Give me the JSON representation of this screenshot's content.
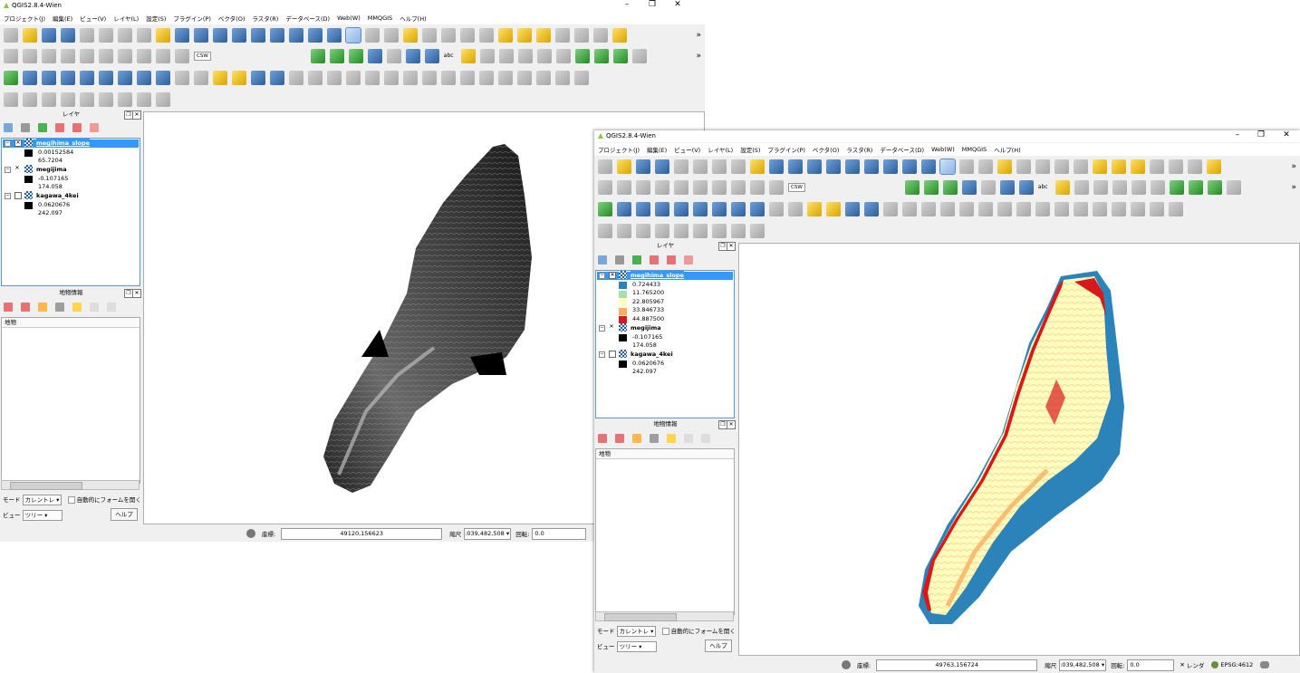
{
  "app_title": "QGIS2.8.4-Wien",
  "menu": [
    "プロジェクト(J)",
    "編集(E)",
    "ビュー(V)",
    "レイヤ(L)",
    "設定(S)",
    "プラグイン(P)",
    "ベクタ(O)",
    "ラスタ(R)",
    "データベース(D)",
    "Web(W)",
    "MMQGIS",
    "ヘルプ(H)"
  ],
  "toolbar": {
    "csw_label": "CSW",
    "abc_label": "abc"
  },
  "layers_panel": {
    "title": "レイヤ"
  },
  "window1": {
    "layers": [
      {
        "name": "megihima_slope",
        "legend": [
          "0.00152584",
          "65.7204"
        ]
      },
      {
        "name": "megijima",
        "legend": [
          "-0.107165",
          "174.058"
        ]
      },
      {
        "name": "kagawa_4kei",
        "legend": [
          "0.0620676",
          "242.097"
        ]
      }
    ],
    "coordinate": "49120,156623",
    "scale": ":039,482,508",
    "rotation": "0.0"
  },
  "window2": {
    "layers": [
      {
        "name": "megihima_slope",
        "legend": [
          "0.724433",
          "11.765200",
          "22.805967",
          "33.846733",
          "44.887500"
        ]
      },
      {
        "name": "megijima",
        "legend": [
          "-0.107165",
          "174.058"
        ]
      },
      {
        "name": "kagawa_4kei",
        "legend": [
          "0.0620676",
          "242.097"
        ]
      }
    ],
    "slope_colors": [
      "#2b83ba",
      "#abdda4",
      "#ffffbf",
      "#fdae61",
      "#d7191c"
    ],
    "coordinate": "49763,156724",
    "scale": ":039,482,508",
    "rotation": "0.0",
    "render_label": "レンダ",
    "crs": "EPSG:4612"
  },
  "feature_panel": {
    "title": "地物情報",
    "column": "地物",
    "mode_label": "モード",
    "mode_value": "カレントレ",
    "auto_open_label": "自動的にフォームを開く",
    "view_label": "ビュー",
    "view_value": "ツリー",
    "help_button": "ヘルプ"
  },
  "statusbar": {
    "coord_label": "座標:",
    "scale_label": "縮尺",
    "rotation_label": "回転:"
  }
}
